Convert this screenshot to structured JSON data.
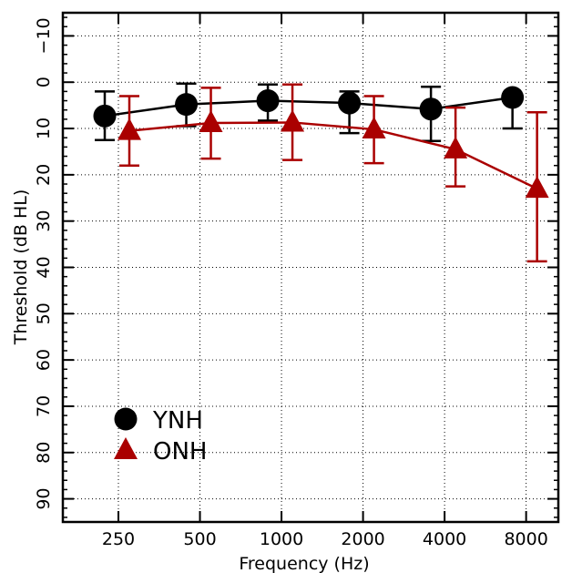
{
  "chart_data": {
    "type": "line",
    "xlabel": "Frequency (Hz)",
    "ylabel": "Threshold (dB HL)",
    "y_inverted": true,
    "ylim": [
      -15,
      95
    ],
    "y_ticks": [
      -10,
      0,
      10,
      20,
      30,
      40,
      50,
      60,
      70,
      80,
      90
    ],
    "categories": [
      "250",
      "500",
      "1000",
      "2000",
      "4000",
      "8000"
    ],
    "grid": true,
    "legend_position": "bottom-left",
    "series": [
      {
        "name": "YNH",
        "marker": "circle",
        "color": "#000000",
        "values": [
          7.3,
          4.8,
          4.0,
          4.5,
          5.8,
          3.3
        ],
        "error_low": [
          2.0,
          0.3,
          0.5,
          2.0,
          1.0,
          3.5
        ],
        "error_high": [
          12.5,
          9.5,
          8.3,
          11.0,
          12.7,
          10.0
        ]
      },
      {
        "name": "ONH",
        "marker": "triangle",
        "color": "#aa0000",
        "values": [
          10.5,
          8.8,
          8.7,
          10.2,
          14.5,
          23.0
        ],
        "error_low": [
          3.0,
          1.2,
          0.5,
          3.0,
          5.5,
          6.5
        ],
        "error_high": [
          18.0,
          16.5,
          16.8,
          17.5,
          22.5,
          38.7
        ]
      }
    ]
  }
}
